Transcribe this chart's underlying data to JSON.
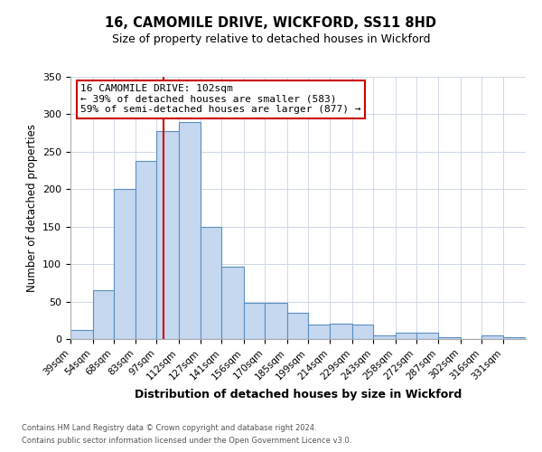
{
  "title": "16, CAMOMILE DRIVE, WICKFORD, SS11 8HD",
  "subtitle": "Size of property relative to detached houses in Wickford",
  "xlabel": "Distribution of detached houses by size in Wickford",
  "ylabel": "Number of detached properties",
  "bar_labels": [
    "39sqm",
    "54sqm",
    "68sqm",
    "83sqm",
    "97sqm",
    "112sqm",
    "127sqm",
    "141sqm",
    "156sqm",
    "170sqm",
    "185sqm",
    "199sqm",
    "214sqm",
    "229sqm",
    "243sqm",
    "258sqm",
    "272sqm",
    "287sqm",
    "302sqm",
    "316sqm",
    "331sqm"
  ],
  "bar_values": [
    12,
    65,
    200,
    238,
    278,
    290,
    150,
    97,
    48,
    48,
    35,
    19,
    20,
    19,
    5,
    8,
    8,
    2,
    0,
    5,
    3
  ],
  "bin_edges": [
    39,
    54,
    68,
    83,
    97,
    112,
    127,
    141,
    156,
    170,
    185,
    199,
    214,
    229,
    243,
    258,
    272,
    287,
    302,
    316,
    331,
    346
  ],
  "bar_color": "#c5d8f0",
  "bar_edge_color": "#5a8fc0",
  "vline_x": 102,
  "vline_color": "#cc0000",
  "ylim": [
    0,
    350
  ],
  "yticks": [
    0,
    50,
    100,
    150,
    200,
    250,
    300,
    350
  ],
  "annotation_title": "16 CAMOMILE DRIVE: 102sqm",
  "annotation_line1": "← 39% of detached houses are smaller (583)",
  "annotation_line2": "59% of semi-detached houses are larger (877) →",
  "annotation_box_color": "#cc0000",
  "footer_line1": "Contains HM Land Registry data © Crown copyright and database right 2024.",
  "footer_line2": "Contains public sector information licensed under the Open Government Licence v3.0.",
  "background_color": "#ffffff",
  "grid_color": "#d0d8e8"
}
